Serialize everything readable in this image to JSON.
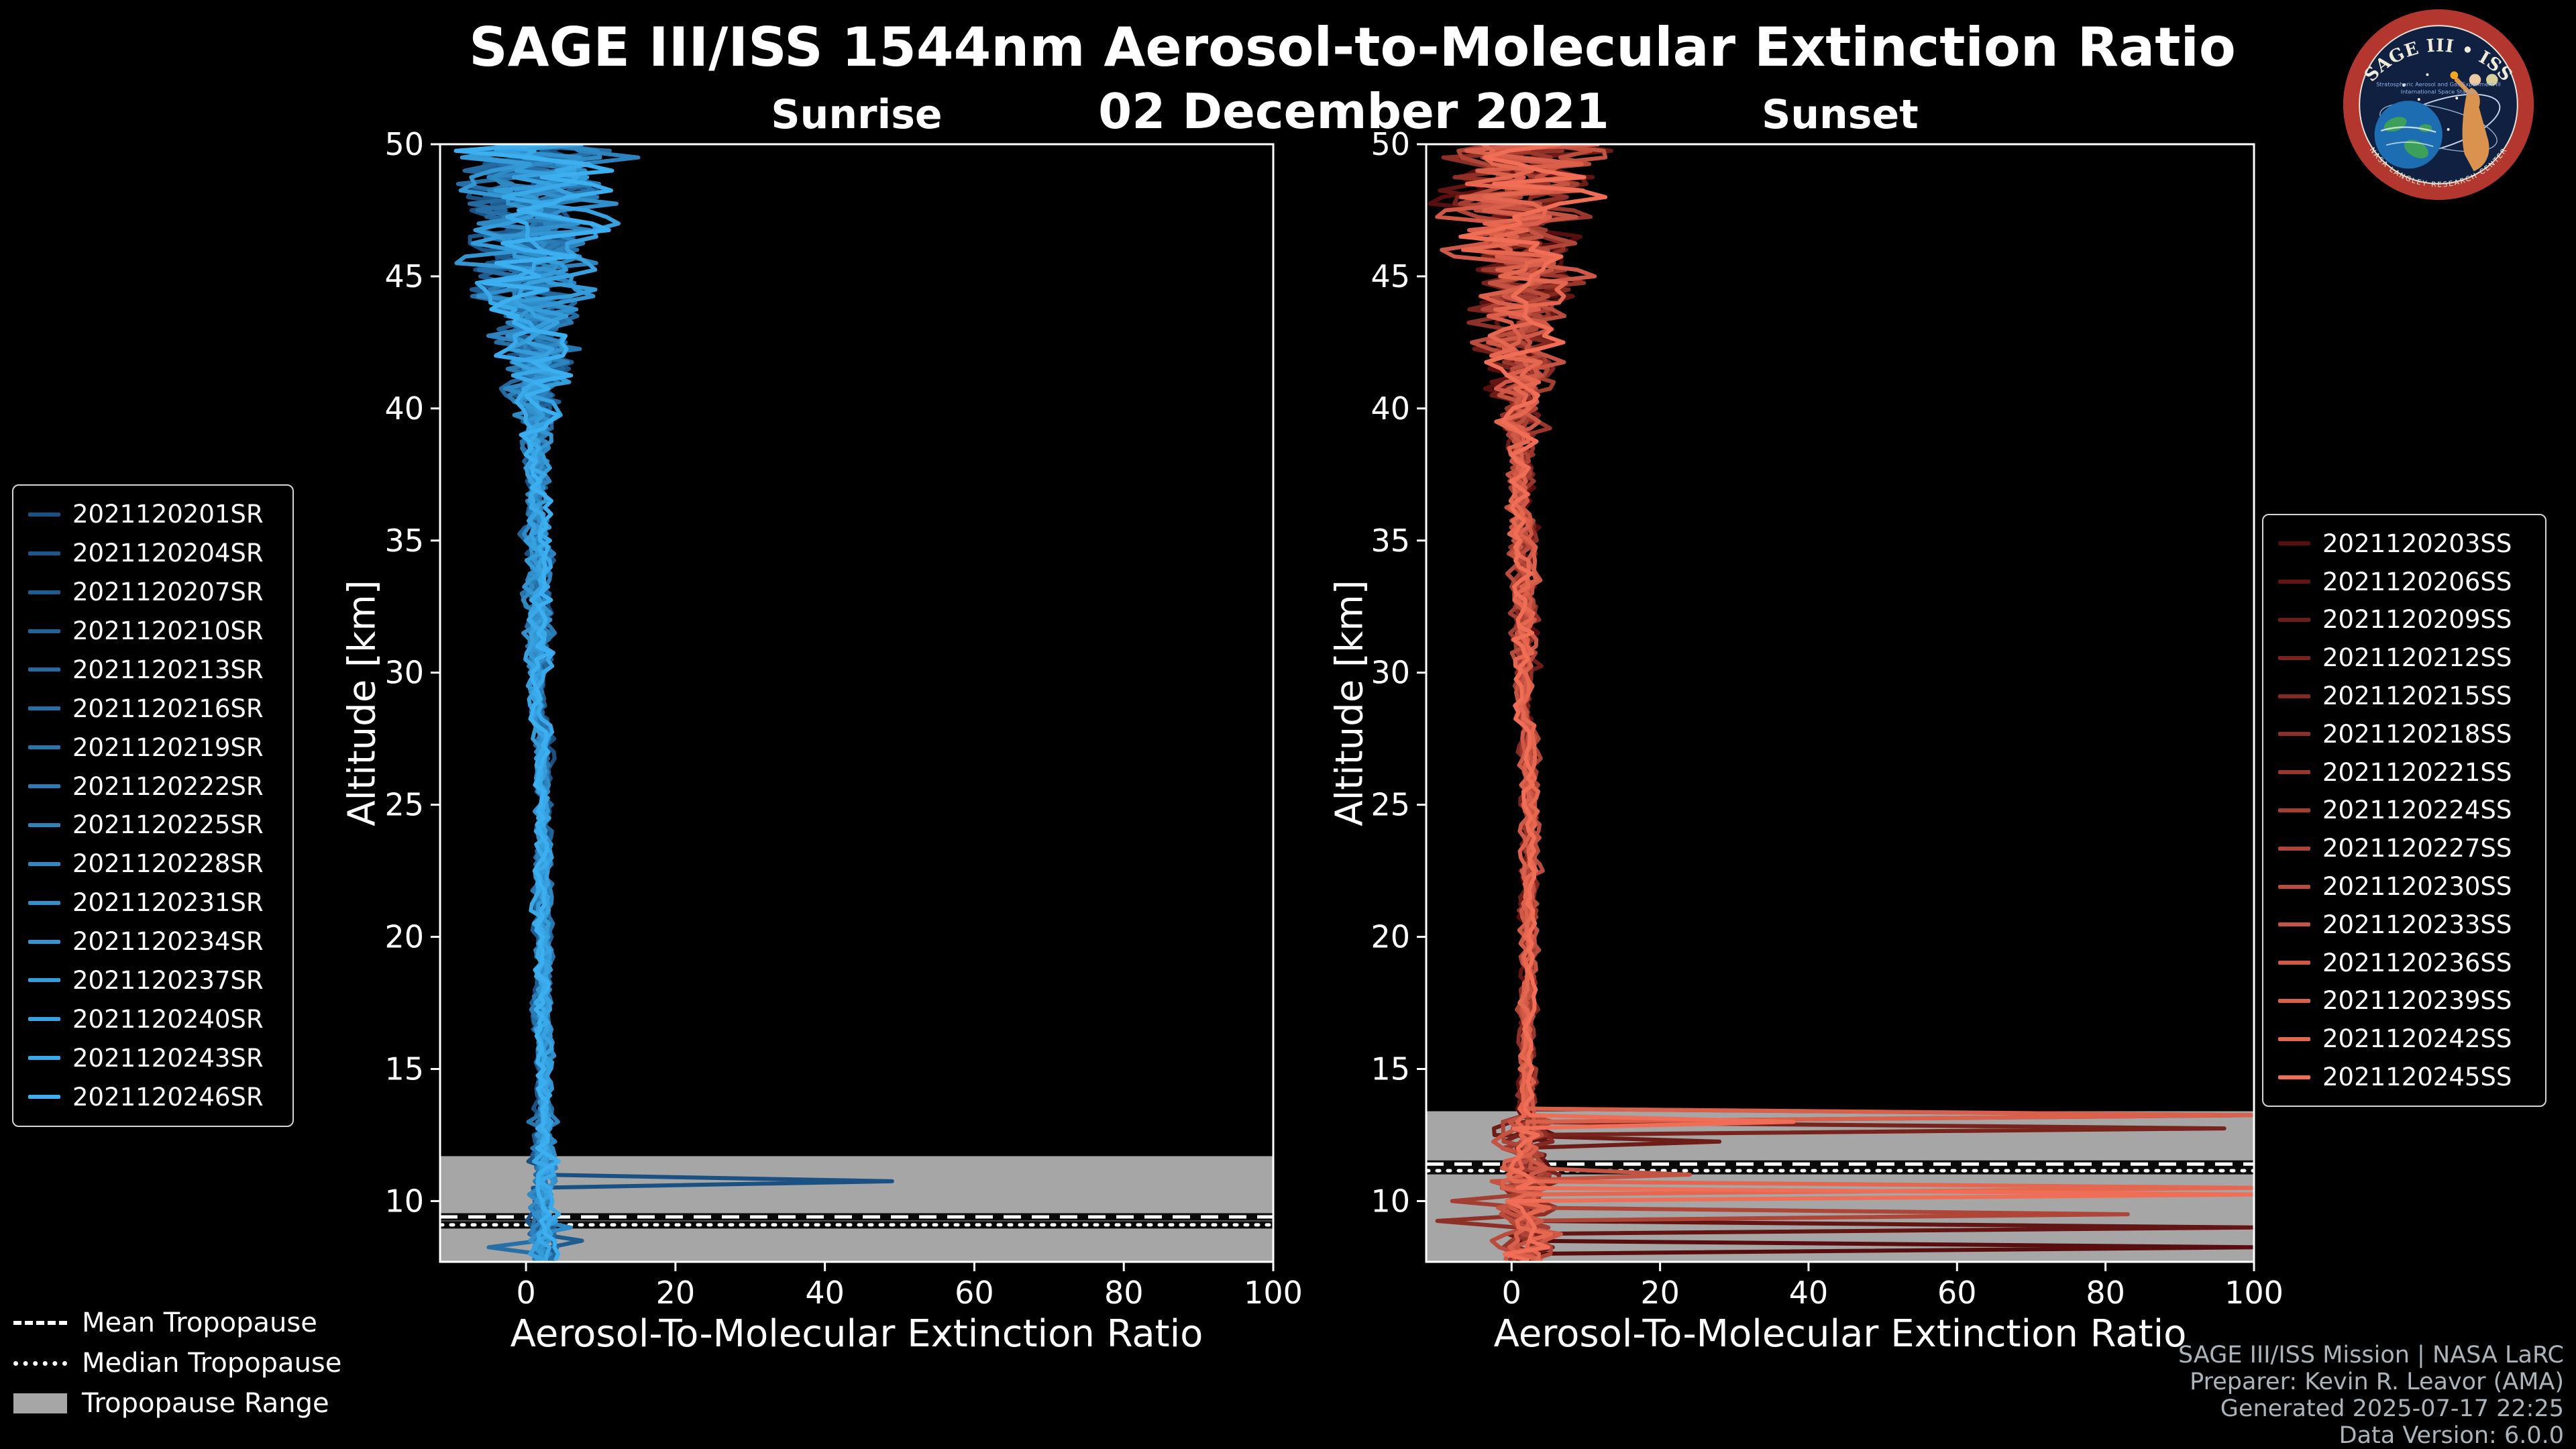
{
  "header": {
    "title": "SAGE III/ISS 1544nm Aerosol-to-Molecular Extinction Ratio",
    "date": "02 December 2021"
  },
  "logo": {
    "title": "SAGE III • ISS",
    "subtitle": "Stratospheric Aerosol and Gas Experiment III",
    "subtitle2": "International Space Station",
    "bottom_text": "NASA LANGLEY RESEARCH CENTER"
  },
  "tropopause_legend": {
    "items": [
      {
        "label": "Mean Tropopause",
        "style": "dashed"
      },
      {
        "label": "Median Tropopause",
        "style": "dotted"
      },
      {
        "label": "Tropopause Range",
        "style": "band"
      }
    ]
  },
  "credits": {
    "lines": [
      "SAGE III/ISS Mission | NASA LaRC",
      "Preparer: Kevin R. Leavor (AMA)",
      "Generated 2025-07-17 22:25",
      "Data Version: 6.0.0"
    ]
  },
  "chart_data": [
    {
      "type": "line",
      "title": "Sunrise",
      "xlabel": "Aerosol-To-Molecular Extinction Ratio",
      "ylabel": "Altitude [km]",
      "xlim": [
        -11.5,
        100
      ],
      "ylim": [
        7.7,
        50
      ],
      "xticks": [
        0,
        20,
        40,
        60,
        80,
        100
      ],
      "yticks": [
        10,
        15,
        20,
        25,
        30,
        35,
        40,
        45,
        50
      ],
      "grid": false,
      "legend_position": "left",
      "background": "#000000",
      "tropopause_band_color": "#a6a6a6",
      "tropopause": {
        "mean_km": 9.4,
        "median_km": 9.1,
        "range_km": [
          7.7,
          11.7
        ]
      },
      "profile_envelope": {
        "stratosphere_typical_x": [
          0,
          5
        ],
        "above_40km_spread_x": [
          -8,
          18
        ],
        "note": "Vertical extinction-ratio profiles cluster near 0-5 between 13 and 35 km; oscillations grow above 40 km; one profile spikes to ~49 near 10.8 km"
      },
      "series": [
        {
          "name": "2021120201SR",
          "color": "#1b5082",
          "spikes": [
            {
              "alt_km": 10.8,
              "x": 49
            }
          ]
        },
        {
          "name": "2021120204SR",
          "color": "#1d5689",
          "spikes": []
        },
        {
          "name": "2021120207SR",
          "color": "#1f5d91",
          "spikes": [
            {
              "alt_km": 8.5,
              "x": 7.5
            }
          ]
        },
        {
          "name": "2021120210SR",
          "color": "#226398",
          "spikes": []
        },
        {
          "name": "2021120213SR",
          "color": "#24699f",
          "spikes": []
        },
        {
          "name": "2021120216SR",
          "color": "#2670a7",
          "spikes": [
            {
              "alt_km": 8.3,
              "x": -5
            }
          ]
        },
        {
          "name": "2021120219SR",
          "color": "#2876ae",
          "spikes": []
        },
        {
          "name": "2021120222SR",
          "color": "#2a7cb5",
          "spikes": []
        },
        {
          "name": "2021120225SR",
          "color": "#2d83bd",
          "spikes": []
        },
        {
          "name": "2021120228SR",
          "color": "#2f89c4",
          "spikes": [
            {
              "alt_km": 9.0,
              "x": 6
            }
          ]
        },
        {
          "name": "2021120231SR",
          "color": "#318fcb",
          "spikes": []
        },
        {
          "name": "2021120234SR",
          "color": "#3396d3",
          "spikes": []
        },
        {
          "name": "2021120237SR",
          "color": "#359cda",
          "spikes": []
        },
        {
          "name": "2021120240SR",
          "color": "#38a2e1",
          "spikes": []
        },
        {
          "name": "2021120243SR",
          "color": "#3aa9e9",
          "spikes": []
        },
        {
          "name": "2021120246SR",
          "color": "#3caff0",
          "spikes": []
        }
      ]
    },
    {
      "type": "line",
      "title": "Sunset",
      "xlabel": "Aerosol-To-Molecular Extinction Ratio",
      "ylabel": "Altitude [km]",
      "xlim": [
        -11.5,
        100
      ],
      "ylim": [
        7.7,
        50
      ],
      "xticks": [
        0,
        20,
        40,
        60,
        80,
        100
      ],
      "yticks": [
        10,
        15,
        20,
        25,
        30,
        35,
        40,
        45,
        50
      ],
      "grid": false,
      "legend_position": "right",
      "background": "#000000",
      "tropopause_band_color": "#a6a6a6",
      "tropopause": {
        "mean_km": 11.4,
        "median_km": 11.15,
        "range_km": [
          7.7,
          13.4
        ]
      },
      "profile_envelope": {
        "stratosphere_typical_x": [
          0,
          5
        ],
        "above_40km_spread_x": [
          -6,
          15
        ],
        "note": "Profiles cluster near 0-5 in the stratosphere; multiple cloud spikes below 13.5 km reach the 100 axis limit"
      },
      "series": [
        {
          "name": "2021120203SS",
          "color": "#580e0e",
          "spikes": [
            {
              "alt_km": 8.2,
              "x": 100
            }
          ]
        },
        {
          "name": "2021120206SS",
          "color": "#631513",
          "spikes": [
            {
              "alt_km": 9.0,
              "x": 100
            }
          ]
        },
        {
          "name": "2021120209SS",
          "color": "#6e1c18",
          "spikes": [
            {
              "alt_km": 12.3,
              "x": 28
            }
          ]
        },
        {
          "name": "2021120212SS",
          "color": "#79231d",
          "spikes": [
            {
              "alt_km": 12.7,
              "x": 96
            }
          ]
        },
        {
          "name": "2021120215SS",
          "color": "#832922",
          "spikes": []
        },
        {
          "name": "2021120218SS",
          "color": "#8e3027",
          "spikes": [
            {
              "alt_km": 9.35,
              "x": -10
            }
          ]
        },
        {
          "name": "2021120221SS",
          "color": "#99372c",
          "spikes": [
            {
              "alt_km": 13.3,
              "x": 100
            }
          ]
        },
        {
          "name": "2021120224SS",
          "color": "#a43e32",
          "spikes": [
            {
              "alt_km": 10.1,
              "x": -8
            }
          ]
        },
        {
          "name": "2021120227SS",
          "color": "#af4537",
          "spikes": [
            {
              "alt_km": 9.6,
              "x": 83
            }
          ]
        },
        {
          "name": "2021120230SS",
          "color": "#b94c3c",
          "spikes": []
        },
        {
          "name": "2021120233SS",
          "color": "#c45341",
          "spikes": [
            {
              "alt_km": 11.0,
              "x": 24
            }
          ]
        },
        {
          "name": "2021120236SS",
          "color": "#cf5946",
          "spikes": []
        },
        {
          "name": "2021120239SS",
          "color": "#da604b",
          "spikes": [
            {
              "alt_km": 13.35,
              "x": 100
            }
          ]
        },
        {
          "name": "2021120242SS",
          "color": "#e56750",
          "spikes": [
            {
              "alt_km": 10.45,
              "x": 100
            }
          ]
        },
        {
          "name": "2021120245SS",
          "color": "#f06e55",
          "spikes": [
            {
              "alt_km": 10.3,
              "x": 100
            },
            {
              "alt_km": 12.9,
              "x": 38
            }
          ]
        }
      ]
    }
  ]
}
